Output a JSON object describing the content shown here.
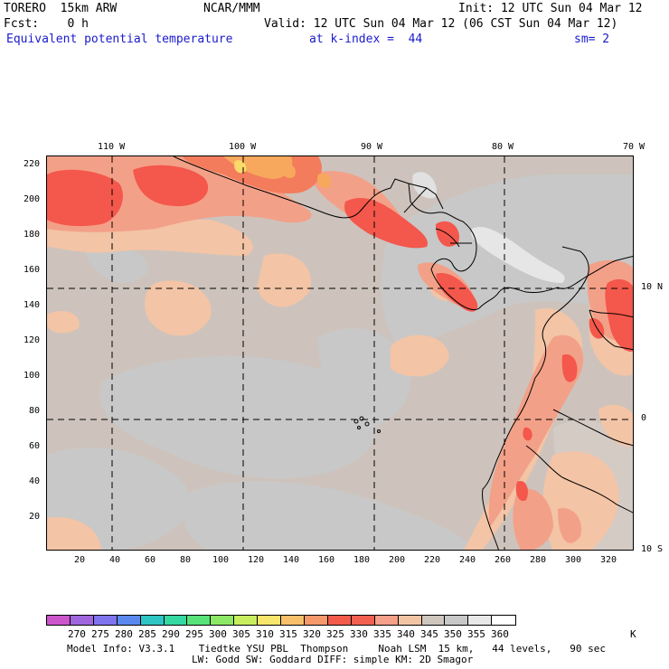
{
  "header": {
    "model": "TORERO  15km ARW",
    "org": "NCAR/MMM",
    "init": "Init: 12 UTC Sun 04 Mar 12",
    "fcst": "Fcst:    0 h",
    "valid": "Valid: 12 UTC Sun 04 Mar 12 (06 CST Sun 04 Mar 12)",
    "field": "Equivalent potential temperature",
    "level": "at k-index =  44",
    "smooth": "sm= 2"
  },
  "map": {
    "top_lon_labels": [
      "110 W",
      "100 W",
      "90 W",
      "80 W",
      "70 W"
    ],
    "right_lat_labels": [
      "10 N",
      "0",
      "10 S"
    ],
    "left_y_ticks": [
      "220",
      "200",
      "180",
      "160",
      "140",
      "120",
      "100",
      "80",
      "60",
      "40",
      "20"
    ],
    "bottom_x_ticks": [
      "20",
      "40",
      "60",
      "80",
      "100",
      "120",
      "140",
      "160",
      "180",
      "200",
      "220",
      "240",
      "260",
      "280",
      "300",
      "320"
    ],
    "colors": {
      "background": "#cdc3bc",
      "gray": "#c8c8c8",
      "light_gray": "#e1e1e1",
      "tan": "#f3c4a6",
      "salmon": "#f3a088",
      "red": "#f4574b",
      "orange": "#f27c5b",
      "yellow_orange": "#f7a85d",
      "yellow": "#fcd96b"
    }
  },
  "colorbar": {
    "labels": [
      "270",
      "275",
      "280",
      "285",
      "290",
      "295",
      "300",
      "305",
      "310",
      "315",
      "320",
      "325",
      "330",
      "335",
      "340",
      "345",
      "350",
      "355",
      "360"
    ],
    "unit": "K",
    "colors": [
      "#cc55cc",
      "#a066dd",
      "#7f74ee",
      "#5a88ee",
      "#2fc4c4",
      "#34d8a0",
      "#58e27a",
      "#8ce864",
      "#c8ee5e",
      "#f8e66c",
      "#f8c06a",
      "#f5986a",
      "#f25a4a",
      "#f26050",
      "#f5a088",
      "#f2c4a4",
      "#cfc6be",
      "#c8c8c8",
      "#e8e8e8",
      "#ffffff"
    ]
  },
  "footer": {
    "line1": "Model Info: V3.3.1    Tiedtke YSU PBL  Thompson     Noah LSM  15 km,   44 levels,   90 sec",
    "line2": "LW: Godd SW: Goddard DIFF: simple KM: 2D Smagor"
  }
}
